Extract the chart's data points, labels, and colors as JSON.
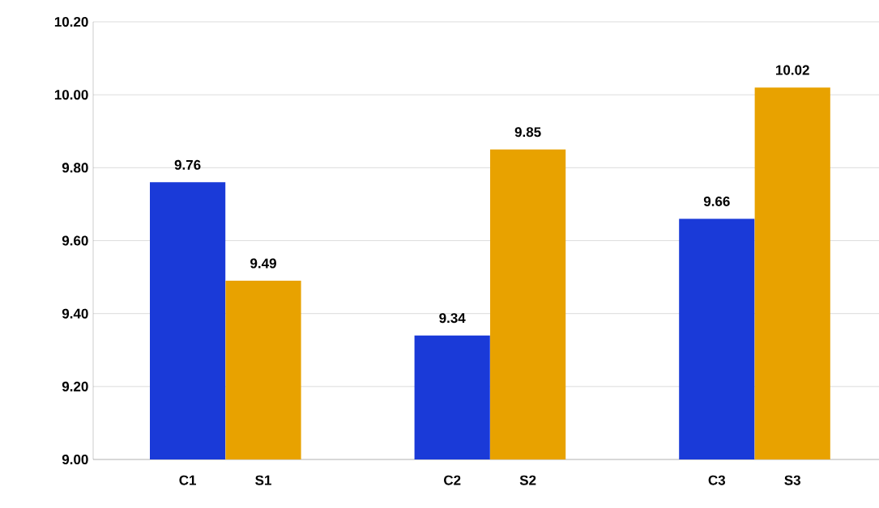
{
  "chart_data": {
    "type": "bar",
    "categories": [
      "C1",
      "S1",
      "C2",
      "S2",
      "C3",
      "S3"
    ],
    "values": [
      9.76,
      9.49,
      9.34,
      9.85,
      9.66,
      10.02
    ],
    "colors": [
      "#1a3ad8",
      "#e8a200",
      "#1a3ad8",
      "#e8a200",
      "#1a3ad8",
      "#e8a200"
    ],
    "ylim": [
      9.0,
      10.2
    ],
    "yticks": [
      {
        "value": 9.0,
        "label": "9.00"
      },
      {
        "value": 9.2,
        "label": "9.20"
      },
      {
        "value": 9.4,
        "label": "9.40"
      },
      {
        "value": 9.6,
        "label": "9.60"
      },
      {
        "value": 9.8,
        "label": "9.80"
      },
      {
        "value": 10.0,
        "label": "10.00"
      },
      {
        "value": 10.2,
        "label": "10.20"
      }
    ],
    "grid": "y",
    "data_labels": true
  }
}
